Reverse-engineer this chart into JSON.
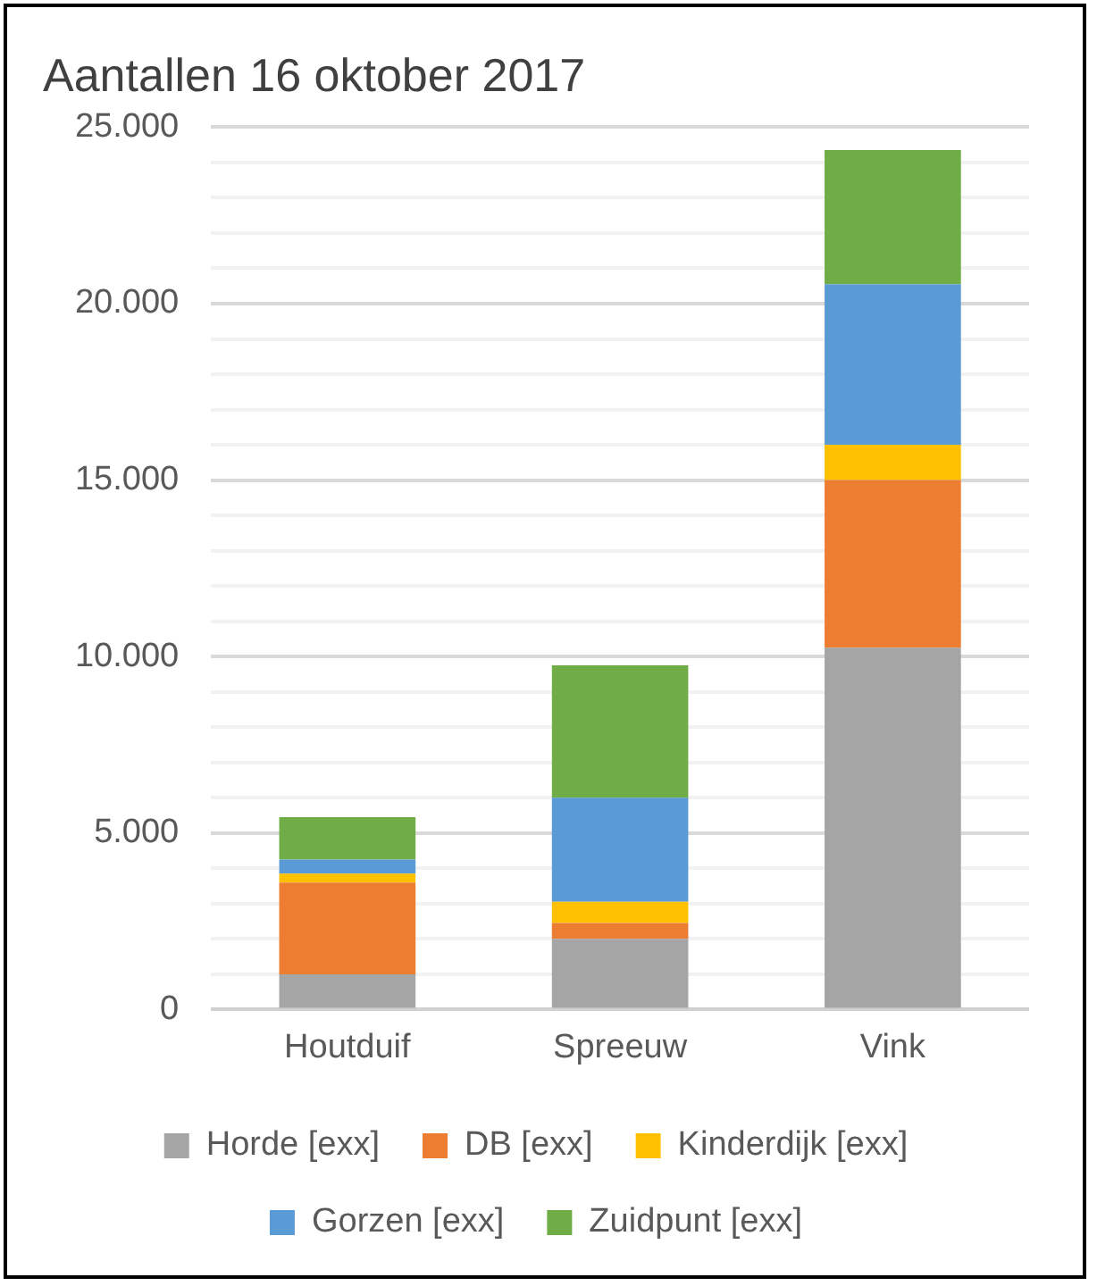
{
  "chart_data": {
    "type": "bar",
    "title": "Aantallen 16 oktober 2017",
    "categories": [
      "Houtduif",
      "Spreeuw",
      "Vink"
    ],
    "stacked": true,
    "series": [
      {
        "name": "Horde [exx]",
        "color": "#a5a5a5",
        "values": [
          1000,
          2000,
          10250
        ]
      },
      {
        "name": "DB [exx]",
        "color": "#ed7d31",
        "values": [
          2600,
          450,
          4750
        ]
      },
      {
        "name": "Kinderdijk [exx]",
        "color": "#ffc000",
        "values": [
          250,
          600,
          1000
        ]
      },
      {
        "name": "Gorzen [exx]",
        "color": "#5b9bd5",
        "values": [
          400,
          2950,
          4550
        ]
      },
      {
        "name": "Zuidpunt [exx]",
        "color": "#70ad47",
        "values": [
          1200,
          3750,
          3800
        ]
      }
    ],
    "ylim": [
      0,
      25000
    ],
    "yticks": [
      {
        "value": 0,
        "label": "0"
      },
      {
        "value": 1000,
        "label": null
      },
      {
        "value": 2000,
        "label": null
      },
      {
        "value": 3000,
        "label": null
      },
      {
        "value": 4000,
        "label": null
      },
      {
        "value": 5000,
        "label": "5.000"
      },
      {
        "value": 6000,
        "label": null
      },
      {
        "value": 7000,
        "label": null
      },
      {
        "value": 8000,
        "label": null
      },
      {
        "value": 9000,
        "label": null
      },
      {
        "value": 10000,
        "label": "10.000"
      },
      {
        "value": 11000,
        "label": null
      },
      {
        "value": 12000,
        "label": null
      },
      {
        "value": 13000,
        "label": null
      },
      {
        "value": 14000,
        "label": null
      },
      {
        "value": 15000,
        "label": "15.000"
      },
      {
        "value": 16000,
        "label": null
      },
      {
        "value": 17000,
        "label": null
      },
      {
        "value": 18000,
        "label": null
      },
      {
        "value": 19000,
        "label": null
      },
      {
        "value": 20000,
        "label": "20.000"
      },
      {
        "value": 21000,
        "label": null
      },
      {
        "value": 22000,
        "label": null
      },
      {
        "value": 23000,
        "label": null
      },
      {
        "value": 24000,
        "label": null
      },
      {
        "value": 25000,
        "label": "25.000"
      }
    ],
    "grid": "y",
    "legend": "bottom"
  }
}
